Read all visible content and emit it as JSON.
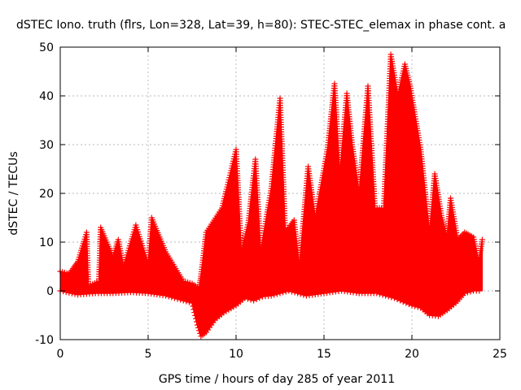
{
  "chart_data": {
    "type": "area",
    "title": "dSTEC Iono. truth (flrs, Lon=328, Lat=39, h=80): STEC-STEC_elemax in phase cont. a",
    "xlabel": "GPS time / hours of day 285 of year 2011",
    "ylabel": "dSTEC / TECUs",
    "xlim": [
      0,
      25
    ],
    "ylim": [
      -10,
      50
    ],
    "x_ticks": [
      0,
      5,
      10,
      15,
      20,
      25
    ],
    "y_ticks": [
      -10,
      0,
      10,
      20,
      30,
      40,
      50
    ],
    "x_tick_labels": [
      "0",
      "5",
      "10",
      "15",
      "20",
      "25"
    ],
    "y_tick_labels": [
      "-10",
      "0",
      "10",
      "20",
      "30",
      "40",
      "50"
    ],
    "grid": true,
    "series_color": "#ff0000",
    "marker": "plus",
    "upper_envelope": [
      [
        0.0,
        4
      ],
      [
        0.5,
        3.5
      ],
      [
        1.0,
        6
      ],
      [
        1.5,
        12
      ],
      [
        1.6,
        1
      ],
      [
        2.2,
        2
      ],
      [
        2.3,
        13
      ],
      [
        3.0,
        7
      ],
      [
        3.3,
        10.5
      ],
      [
        3.6,
        5
      ],
      [
        4.3,
        13.5
      ],
      [
        5.0,
        5.5
      ],
      [
        5.2,
        15
      ],
      [
        6.0,
        8
      ],
      [
        7.0,
        2
      ],
      [
        7.5,
        1.5
      ],
      [
        7.9,
        0.5
      ],
      [
        8.0,
        3
      ],
      [
        8.3,
        12
      ],
      [
        9.2,
        17
      ],
      [
        10.0,
        29
      ],
      [
        10.3,
        8
      ],
      [
        10.7,
        14
      ],
      [
        11.1,
        27
      ],
      [
        11.4,
        8
      ],
      [
        12.0,
        21
      ],
      [
        12.5,
        39.5
      ],
      [
        12.8,
        12
      ],
      [
        13.3,
        14.5
      ],
      [
        13.6,
        5
      ],
      [
        14.1,
        25.5
      ],
      [
        14.5,
        15
      ],
      [
        15.2,
        29
      ],
      [
        15.6,
        42.5
      ],
      [
        15.9,
        24
      ],
      [
        16.3,
        40.5
      ],
      [
        16.6,
        30
      ],
      [
        17.0,
        20
      ],
      [
        17.5,
        42
      ],
      [
        17.9,
        17
      ],
      [
        18.4,
        17
      ],
      [
        18.8,
        48.5
      ],
      [
        19.2,
        40
      ],
      [
        19.6,
        46.5
      ],
      [
        19.9,
        42
      ],
      [
        20.5,
        29
      ],
      [
        21.0,
        12
      ],
      [
        21.3,
        24
      ],
      [
        21.7,
        15
      ],
      [
        22.0,
        11
      ],
      [
        22.2,
        19
      ],
      [
        22.6,
        10.5
      ],
      [
        23.0,
        12
      ],
      [
        23.5,
        11
      ],
      [
        23.8,
        6
      ],
      [
        24.0,
        10.5
      ]
    ],
    "lower_envelope": [
      [
        0.0,
        0
      ],
      [
        1.0,
        -0.8
      ],
      [
        2.0,
        -0.5
      ],
      [
        3.0,
        -0.5
      ],
      [
        4.0,
        -0.3
      ],
      [
        5.0,
        -0.5
      ],
      [
        6.0,
        -1
      ],
      [
        6.5,
        -1.5
      ],
      [
        7.0,
        -2
      ],
      [
        7.5,
        -2.5
      ],
      [
        7.8,
        -7
      ],
      [
        8.0,
        -9.3
      ],
      [
        8.3,
        -8.5
      ],
      [
        8.8,
        -6
      ],
      [
        9.3,
        -4.5
      ],
      [
        10.0,
        -3
      ],
      [
        10.5,
        -1.5
      ],
      [
        11.0,
        -2
      ],
      [
        11.5,
        -1.2
      ],
      [
        12.0,
        -1
      ],
      [
        13.0,
        0
      ],
      [
        14.0,
        -1
      ],
      [
        15.0,
        -0.5
      ],
      [
        16.0,
        0
      ],
      [
        17.0,
        -0.5
      ],
      [
        18.0,
        -0.5
      ],
      [
        19.0,
        -1.5
      ],
      [
        20.0,
        -3
      ],
      [
        20.5,
        -3.5
      ],
      [
        21.0,
        -5
      ],
      [
        21.5,
        -5.2
      ],
      [
        22.0,
        -4
      ],
      [
        22.5,
        -2.5
      ],
      [
        23.0,
        -0.5
      ],
      [
        23.5,
        0
      ],
      [
        24.0,
        0
      ]
    ]
  }
}
